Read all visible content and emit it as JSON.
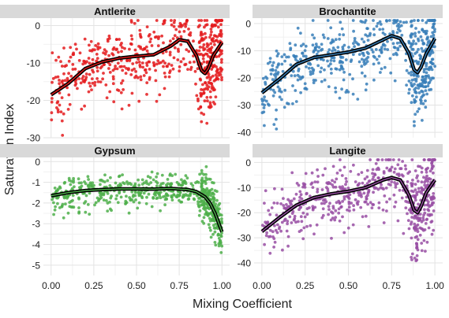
{
  "figure": {
    "xlabel": "Mixing Coefficient",
    "ylabel": "Saturation Index",
    "strip_color": "#d9d9d9",
    "grid_major": "#e3e3e3",
    "grid_minor": "#f1f1f1",
    "fit_color": "#000000"
  },
  "chart_data": [
    {
      "type": "scatter",
      "title": "Antlerite",
      "color": "#e41a1c",
      "xlim": [
        0,
        1
      ],
      "ylim": [
        -30,
        2
      ],
      "x_ticks": [
        0,
        0.25,
        0.5,
        0.75,
        1
      ],
      "x_tick_labels": [
        "0.00",
        "0.25",
        "0.50",
        "0.75",
        "1.00"
      ],
      "y_ticks": [
        0,
        -10,
        -20,
        -30
      ],
      "y_tick_labels": [
        "0",
        "-10",
        "-20",
        "-30"
      ],
      "show_x_tick_labels": false,
      "fit": {
        "x": [
          0,
          0.1,
          0.2,
          0.3,
          0.4,
          0.5,
          0.6,
          0.7,
          0.75,
          0.8,
          0.85,
          0.88,
          0.9,
          0.92,
          0.95,
          1.0
        ],
        "y": [
          -18.5,
          -15.5,
          -11.5,
          -9.7,
          -8.7,
          -8.2,
          -7.8,
          -5.5,
          -3.8,
          -4.2,
          -8.0,
          -12.0,
          -12.8,
          -11.5,
          -8.0,
          -4.5
        ]
      },
      "points": {
        "count": 600,
        "seed": 11,
        "scatter": 6.5,
        "dense_start": 0.86
      }
    },
    {
      "type": "scatter",
      "title": "Brochantite",
      "color": "#377eb8",
      "xlim": [
        0,
        1
      ],
      "ylim": [
        -42,
        2
      ],
      "x_ticks": [
        0,
        0.25,
        0.5,
        0.75,
        1
      ],
      "x_tick_labels": [
        "0.00",
        "0.25",
        "0.50",
        "0.75",
        "1.00"
      ],
      "y_ticks": [
        0,
        -10,
        -20,
        -30,
        -40
      ],
      "y_tick_labels": [
        "0",
        "-10",
        "-20",
        "-30",
        "-40"
      ],
      "show_x_tick_labels": false,
      "fit": {
        "x": [
          0,
          0.1,
          0.2,
          0.3,
          0.4,
          0.5,
          0.6,
          0.7,
          0.75,
          0.8,
          0.85,
          0.88,
          0.9,
          0.92,
          0.95,
          1.0
        ],
        "y": [
          -25.5,
          -20.5,
          -15.0,
          -12.5,
          -11.5,
          -10.5,
          -9.0,
          -6.0,
          -4.5,
          -5.5,
          -11.0,
          -17.0,
          -18.0,
          -16.0,
          -11.0,
          -5.5
        ]
      },
      "points": {
        "count": 600,
        "seed": 23,
        "scatter": 8.5,
        "dense_start": 0.86
      }
    },
    {
      "type": "scatter",
      "title": "Gypsum",
      "color": "#4daf4a",
      "xlim": [
        0,
        1
      ],
      "ylim": [
        -5.5,
        0.2
      ],
      "x_ticks": [
        0,
        0.25,
        0.5,
        0.75,
        1
      ],
      "x_tick_labels": [
        "0.00",
        "0.25",
        "0.50",
        "0.75",
        "1.00"
      ],
      "y_ticks": [
        0,
        -1,
        -2,
        -3,
        -4,
        -5
      ],
      "y_tick_labels": [
        "0",
        "-1",
        "-2",
        "-3",
        "-4",
        "-5"
      ],
      "show_x_tick_labels": true,
      "fit": {
        "x": [
          0,
          0.1,
          0.2,
          0.3,
          0.4,
          0.5,
          0.6,
          0.7,
          0.8,
          0.85,
          0.9,
          0.93,
          0.96,
          1.0
        ],
        "y": [
          -1.65,
          -1.5,
          -1.4,
          -1.35,
          -1.32,
          -1.32,
          -1.33,
          -1.3,
          -1.35,
          -1.45,
          -1.7,
          -2.0,
          -2.5,
          -3.4
        ]
      },
      "points": {
        "count": 600,
        "seed": 37,
        "scatter": 0.55,
        "dense_start": 0.86
      }
    },
    {
      "type": "scatter",
      "title": "Langite",
      "color": "#984ea3",
      "xlim": [
        0,
        1
      ],
      "ylim": [
        -45,
        2
      ],
      "x_ticks": [
        0,
        0.25,
        0.5,
        0.75,
        1
      ],
      "x_tick_labels": [
        "0.00",
        "0.25",
        "0.50",
        "0.75",
        "1.00"
      ],
      "y_ticks": [
        0,
        -10,
        -20,
        -30,
        -40
      ],
      "y_tick_labels": [
        "0",
        "-10",
        "-20",
        "-30",
        "-40"
      ],
      "show_x_tick_labels": true,
      "fit": {
        "x": [
          0,
          0.1,
          0.2,
          0.3,
          0.4,
          0.5,
          0.6,
          0.7,
          0.75,
          0.8,
          0.85,
          0.88,
          0.9,
          0.92,
          0.95,
          1.0
        ],
        "y": [
          -27.5,
          -22.0,
          -17.0,
          -14.0,
          -12.5,
          -11.5,
          -10.0,
          -7.0,
          -6.0,
          -7.0,
          -13.0,
          -19.0,
          -20.0,
          -17.5,
          -12.0,
          -7.0
        ]
      },
      "points": {
        "count": 600,
        "seed": 53,
        "scatter": 9.0,
        "dense_start": 0.86
      }
    }
  ]
}
